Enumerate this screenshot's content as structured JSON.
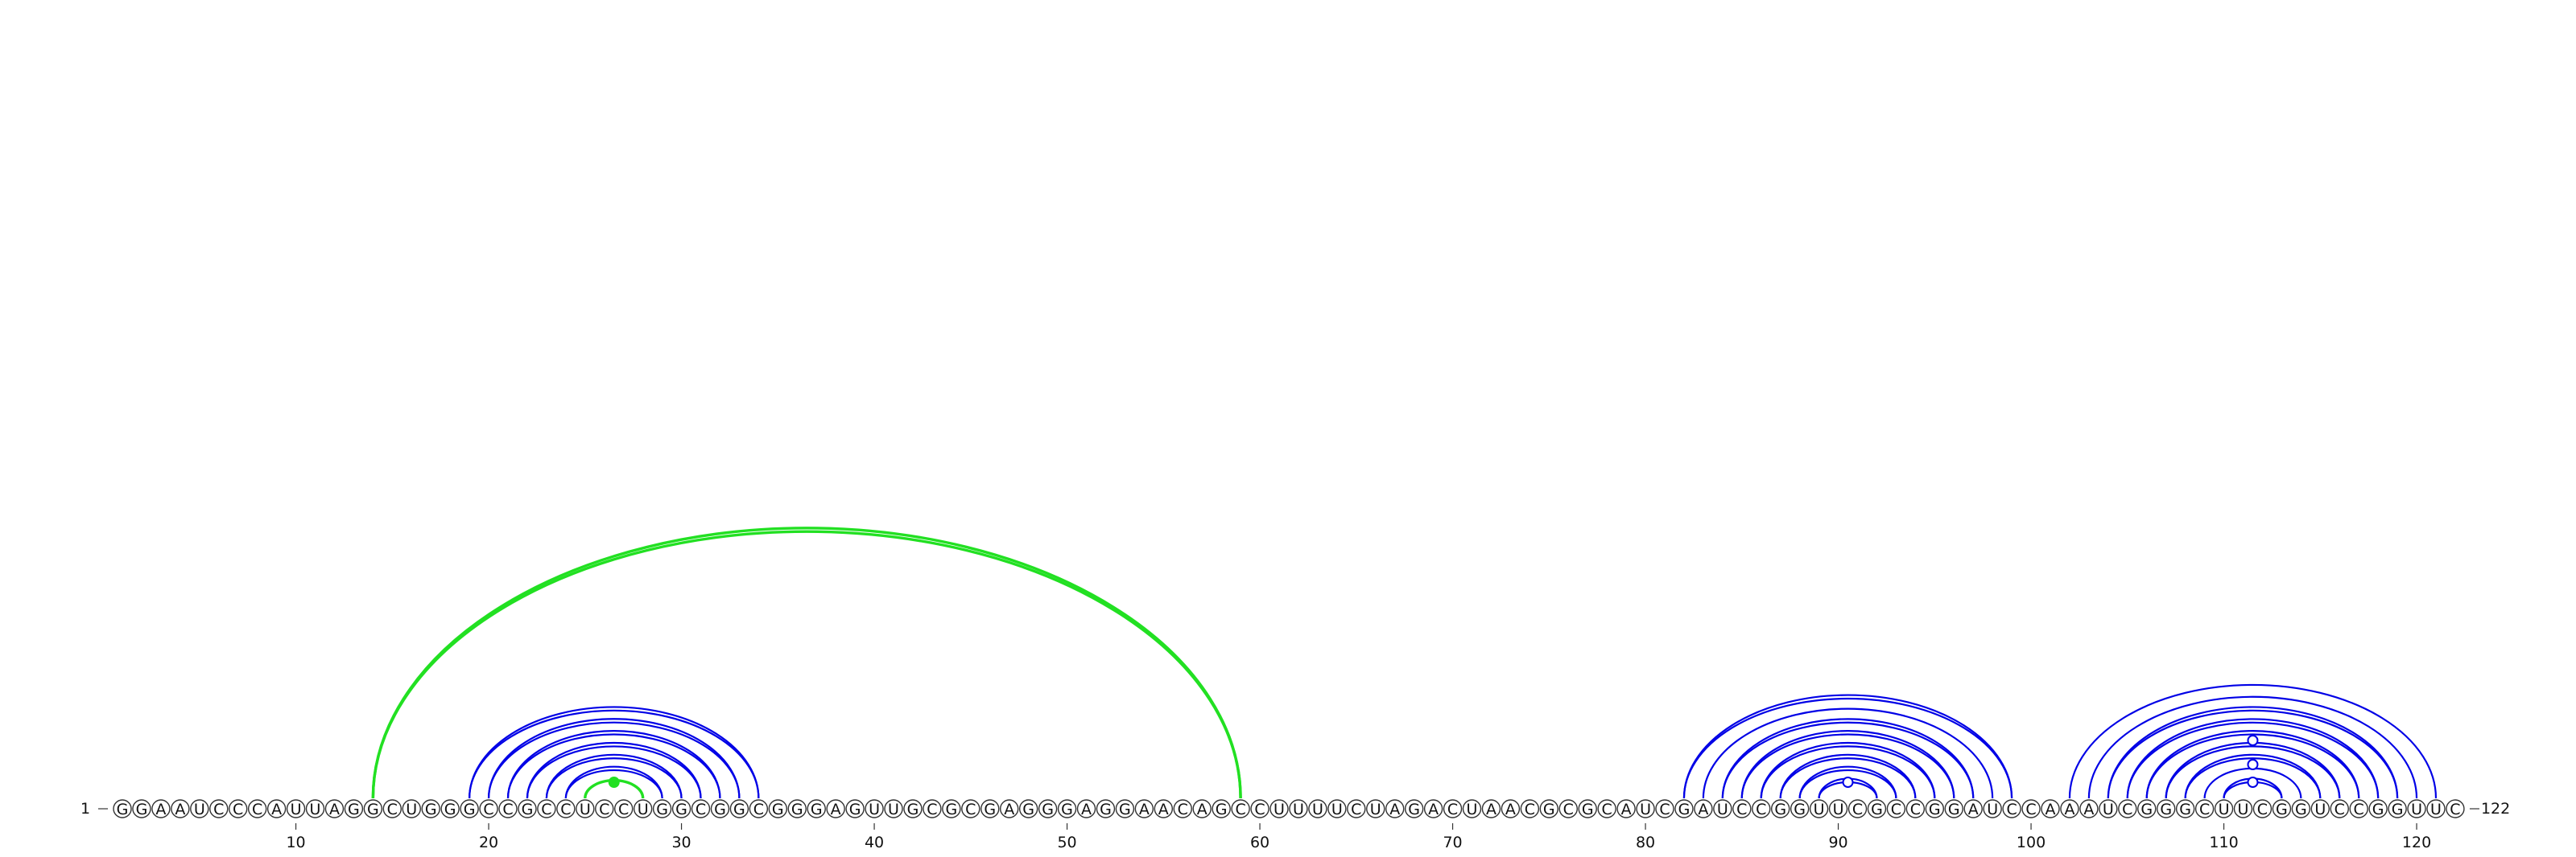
{
  "sequence": "GGAAUCCCAUUAGGCUGGGCCGCCUCCUGGCGGCGGGAGUUGCGCGAGGGAGGAACAGCCUUUUCUAGACUAACGCGCAUCGAUCCGGUUCGCCGGAUCCAAAUCGGGCUUCGGUCCGGUUC",
  "start_label": "1",
  "end_label": "122",
  "ticks": [
    10,
    20,
    30,
    40,
    50,
    60,
    70,
    80,
    90,
    100,
    110,
    120
  ],
  "colors": {
    "blue": "#0000e6",
    "green": "#22e022",
    "tick": "#333333"
  },
  "arcs": [
    {
      "i": 14,
      "j": 59,
      "color": "green",
      "double": true
    },
    {
      "i": 25,
      "j": 28,
      "color": "green",
      "double": false
    },
    {
      "i": 19,
      "j": 34,
      "color": "blue",
      "double": true
    },
    {
      "i": 20,
      "j": 33,
      "color": "blue",
      "double": true
    },
    {
      "i": 21,
      "j": 32,
      "color": "blue",
      "double": true
    },
    {
      "i": 22,
      "j": 31,
      "color": "blue",
      "double": true
    },
    {
      "i": 23,
      "j": 30,
      "color": "blue",
      "double": true
    },
    {
      "i": 24,
      "j": 29,
      "color": "blue",
      "double": true
    },
    {
      "i": 82,
      "j": 99,
      "color": "blue",
      "double": true
    },
    {
      "i": 83,
      "j": 98,
      "color": "blue",
      "double": false
    },
    {
      "i": 84,
      "j": 97,
      "color": "blue",
      "double": true
    },
    {
      "i": 85,
      "j": 96,
      "color": "blue",
      "double": true
    },
    {
      "i": 86,
      "j": 95,
      "color": "blue",
      "double": true
    },
    {
      "i": 87,
      "j": 94,
      "color": "blue",
      "double": true
    },
    {
      "i": 88,
      "j": 93,
      "color": "blue",
      "double": true
    },
    {
      "i": 89,
      "j": 92,
      "color": "blue",
      "double": true
    },
    {
      "i": 102,
      "j": 121,
      "color": "blue",
      "double": false
    },
    {
      "i": 103,
      "j": 120,
      "color": "blue",
      "double": false
    },
    {
      "i": 104,
      "j": 119,
      "color": "blue",
      "double": true
    },
    {
      "i": 105,
      "j": 118,
      "color": "blue",
      "double": true
    },
    {
      "i": 106,
      "j": 117,
      "color": "blue",
      "double": true
    },
    {
      "i": 107,
      "j": 116,
      "color": "blue",
      "double": true
    },
    {
      "i": 108,
      "j": 115,
      "color": "blue",
      "double": true
    },
    {
      "i": 109,
      "j": 114,
      "color": "blue",
      "double": false
    },
    {
      "i": 110,
      "j": 113,
      "color": "blue",
      "double": true
    }
  ],
  "loop_markers": [
    {
      "pos": 26.5,
      "level": 8,
      "color": "green",
      "filled": true
    },
    {
      "pos": 90.5,
      "level": 8,
      "color": "blue",
      "filled": false
    },
    {
      "pos": 111.5,
      "level": 8,
      "color": "blue",
      "filled": false
    },
    {
      "pos": 111.5,
      "level": 30,
      "color": "blue",
      "filled": false
    },
    {
      "pos": 111.5,
      "level": 60,
      "color": "blue",
      "filled": false
    }
  ]
}
